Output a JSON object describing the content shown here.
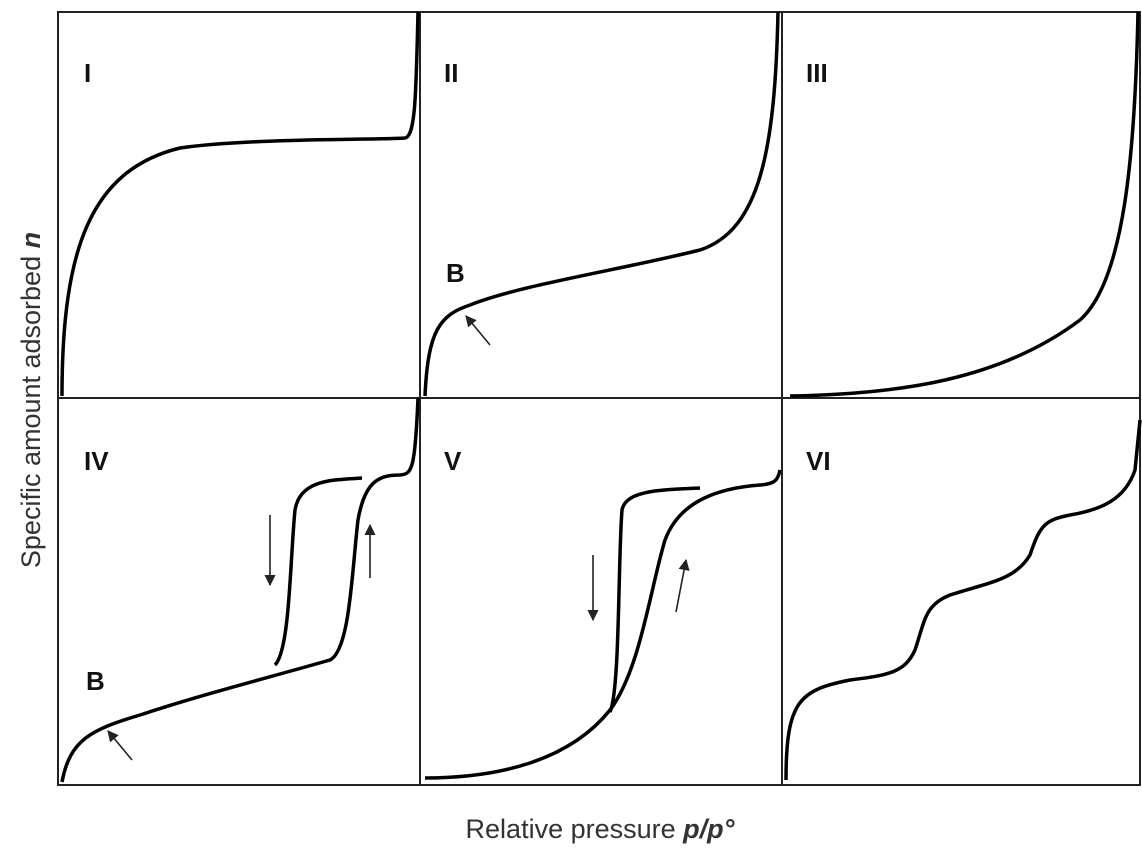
{
  "panels": [
    {
      "label": "I"
    },
    {
      "label": "II",
      "point": "B"
    },
    {
      "label": "III"
    },
    {
      "label": "IV",
      "point": "B"
    },
    {
      "label": "V"
    },
    {
      "label": "VI"
    }
  ],
  "y_axis_label": {
    "text": "Specific amount adsorbed",
    "symbol": "n"
  },
  "x_axis_label": {
    "text": "Relative pressure",
    "symbol": "p/p°"
  }
}
